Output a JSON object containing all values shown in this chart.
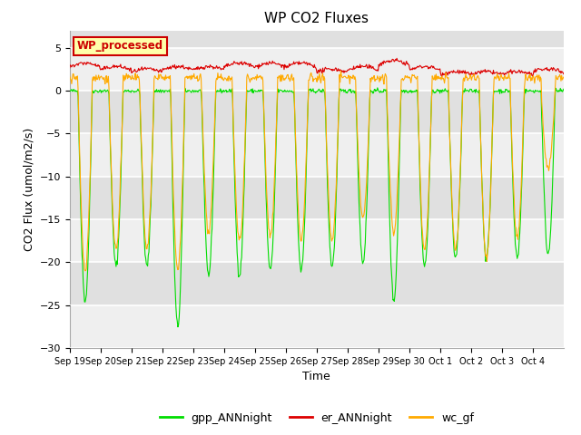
{
  "title": "WP CO2 Fluxes",
  "xlabel": "Time",
  "ylabel_text": "CO2 Flux (umol/m2/s)",
  "ylim": [
    -30,
    7
  ],
  "yticks": [
    -30,
    -25,
    -20,
    -15,
    -10,
    -5,
    0,
    5
  ],
  "colors": {
    "gpp": "#00dd00",
    "er": "#dd0000",
    "wc": "#ffaa00"
  },
  "legend_label": "WP_processed",
  "legend_label_color": "#cc0000",
  "legend_label_bg": "#ffffaa",
  "legend_label_border": "#cc0000",
  "plot_bg": "#e0e0e0",
  "series_names": [
    "gpp_ANNnight",
    "er_ANNnight",
    "wc_gf"
  ],
  "xtick_labels": [
    "Sep 19",
    "Sep 20",
    "Sep 21",
    "Sep 22",
    "Sep 23",
    "Sep 24",
    "Sep 25",
    "Sep 26",
    "Sep 27",
    "Sep 28",
    "Sep 29",
    "Sep 30",
    "Oct 1",
    "Oct 2",
    "Oct 3",
    "Oct 4"
  ],
  "n_days": 16,
  "n_points_per_day": 48,
  "day_minima_gpp": [
    -24.5,
    -20.5,
    -20.5,
    -27.5,
    -21.5,
    -21.5,
    -21.0,
    -21.0,
    -20.5,
    -20.0,
    -24.5,
    -20.5,
    -19.5,
    -19.5,
    -19.5,
    -19.0
  ],
  "day_minima_wc": [
    -21.0,
    -18.5,
    -18.5,
    -21.0,
    -16.5,
    -17.5,
    -17.0,
    -17.5,
    -17.5,
    -15.0,
    -16.5,
    -18.5,
    -18.5,
    -19.5,
    -17.0,
    -9.0
  ],
  "er_peaks": [
    3.2,
    2.8,
    2.5,
    2.8,
    2.8,
    3.2,
    3.2,
    3.2,
    2.5,
    2.8,
    3.5,
    2.8,
    2.2,
    2.2,
    2.2,
    2.5
  ],
  "title_fontsize": 11,
  "axis_label_fontsize": 9,
  "tick_fontsize": 7,
  "legend_fontsize": 9
}
